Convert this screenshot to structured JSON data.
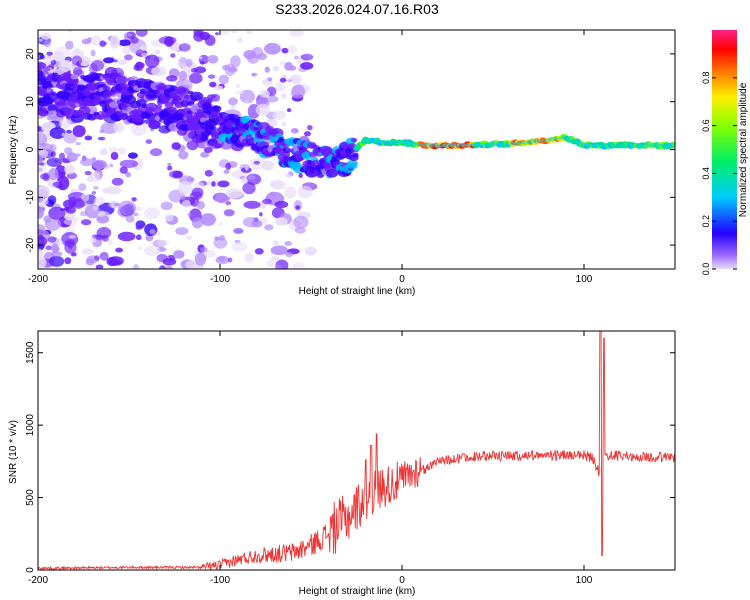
{
  "title": "S233.2026.024.07.16.R03",
  "chart_data": [
    {
      "type": "heatmap",
      "name": "spectrogram",
      "xlabel": "Height of straight line (km)",
      "ylabel": "Frequency (Hz)",
      "xlim": [
        -200,
        150
      ],
      "ylim": [
        -25,
        25
      ],
      "xticks": [
        -200,
        -100,
        0,
        100
      ],
      "yticks": [
        20,
        10,
        0,
        -10,
        -20
      ],
      "colorbar": {
        "label": "Normalized spectral amplitude",
        "range": [
          0.0,
          1.0
        ],
        "ticks": [
          0.0,
          0.2,
          0.4,
          0.6,
          0.8
        ]
      },
      "ridge": {
        "x": [
          -200,
          -180,
          -160,
          -140,
          -120,
          -100,
          -90,
          -80,
          -70,
          -60,
          -50,
          -40,
          -30,
          -20,
          -10,
          0,
          10,
          20,
          40,
          60,
          80,
          90,
          100,
          110,
          120,
          150
        ],
        "y": [
          12,
          11,
          11,
          10,
          8,
          5,
          3.5,
          3,
          1,
          -1,
          -2,
          -3,
          -2,
          2,
          1.5,
          1.5,
          1,
          0.8,
          1,
          1.2,
          2,
          2.5,
          1,
          0.8,
          1,
          0.8
        ]
      }
    },
    {
      "type": "line",
      "name": "snr",
      "xlabel": "Height of straight line (km)",
      "ylabel": "SNR (10 * v/v)",
      "xlim": [
        -200,
        150
      ],
      "ylim": [
        0,
        1650
      ],
      "xticks": [
        -200,
        -100,
        0,
        100
      ],
      "yticks": [
        0,
        500,
        1000,
        1500
      ],
      "color": "#ee3333",
      "envelope": {
        "x": [
          -200,
          -150,
          -110,
          -100,
          -90,
          -80,
          -70,
          -60,
          -50,
          -40,
          -30,
          -20,
          -10,
          0,
          10,
          20,
          30,
          40,
          60,
          80,
          100,
          105,
          108,
          110,
          112,
          115,
          130,
          150
        ],
        "y": [
          12,
          18,
          18,
          35,
          70,
          100,
          110,
          120,
          170,
          260,
          360,
          500,
          580,
          620,
          700,
          760,
          790,
          800,
          810,
          810,
          810,
          790,
          700,
          820,
          790,
          810,
          800,
          795
        ]
      },
      "spikes": [
        {
          "x": -14,
          "y": 940
        },
        {
          "x": -17,
          "y": 860
        },
        {
          "x": -20,
          "y": 760
        },
        {
          "x": 109,
          "y": 1650
        },
        {
          "x": 110,
          "y": 100
        },
        {
          "x": 111,
          "y": 1600
        }
      ]
    }
  ]
}
